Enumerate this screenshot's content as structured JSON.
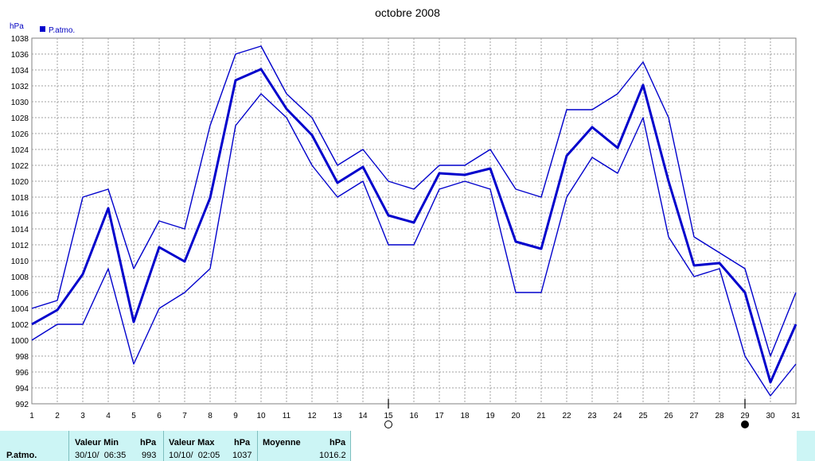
{
  "chart_data": {
    "type": "line",
    "title": "octobre 2008",
    "ylabel": "hPa",
    "legend": {
      "label": "P.atmo.",
      "position": "top-left",
      "color": "#0000cc"
    },
    "x": [
      1,
      2,
      3,
      4,
      5,
      6,
      7,
      8,
      9,
      10,
      11,
      12,
      13,
      14,
      15,
      16,
      17,
      18,
      19,
      20,
      21,
      22,
      23,
      24,
      25,
      26,
      27,
      28,
      29,
      30,
      31
    ],
    "ylim": [
      992,
      1038
    ],
    "yticks": [
      992,
      994,
      996,
      998,
      1000,
      1002,
      1004,
      1006,
      1008,
      1010,
      1012,
      1014,
      1016,
      1018,
      1020,
      1022,
      1024,
      1026,
      1028,
      1030,
      1032,
      1034,
      1036,
      1038
    ],
    "grid": true,
    "series": [
      {
        "role": "max",
        "color": "#0000cc",
        "values": [
          1004,
          1005,
          1018,
          1019,
          1009,
          1015,
          1014,
          1027,
          1036,
          1037,
          1031,
          1028,
          1022,
          1024,
          1020,
          1019,
          1022,
          1022,
          1024,
          1019,
          1018,
          1029,
          1029,
          1031,
          1035,
          1028,
          1013,
          1011,
          1009,
          998,
          1006
        ]
      },
      {
        "role": "mean",
        "color": "#0000cc",
        "values": [
          1002,
          1003.8,
          1008.3,
          1016.6,
          1002.3,
          1011.7,
          1009.9,
          1017.9,
          1032.7,
          1034.1,
          1029.1,
          1025.8,
          1019.8,
          1021.8,
          1015.7,
          1014.8,
          1021,
          1020.8,
          1021.6,
          1012.4,
          1011.5,
          1023.2,
          1026.8,
          1024.2,
          1032.1,
          1020,
          1009.4,
          1009.7,
          1006,
          994.7,
          1002
        ]
      },
      {
        "role": "min",
        "color": "#0000cc",
        "values": [
          1000,
          1002,
          1002,
          1009,
          997,
          1004,
          1006,
          1009,
          1027,
          1031,
          1028,
          1022,
          1018,
          1020,
          1012,
          1012,
          1019,
          1020,
          1019,
          1006,
          1006,
          1018,
          1023,
          1021,
          1028,
          1013,
          1008,
          1009,
          998,
          993,
          997
        ]
      }
    ],
    "moon_markers": [
      {
        "day": 15,
        "phase": "full-moon"
      },
      {
        "day": 29,
        "phase": "new-moon"
      }
    ]
  },
  "stats": {
    "row_label": "P.atmo.",
    "min_header": "Valeur Min",
    "min_unit": "hPa",
    "min_date": "30/10/  06:35",
    "min_value": "993",
    "max_header": "Valeur Max",
    "max_unit": "hPa",
    "max_date": "10/10/  02:05",
    "max_value": "1037",
    "mean_header": "Moyenne",
    "mean_unit": "hPa",
    "mean_value": "1016.2"
  }
}
